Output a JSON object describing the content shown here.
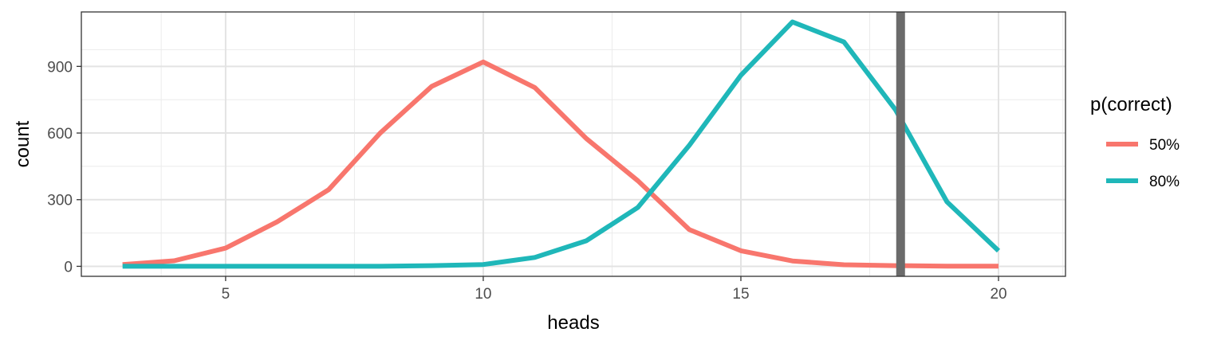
{
  "chart_data": {
    "type": "line",
    "xlabel": "heads",
    "ylabel": "count",
    "xlim": [
      2.2,
      21.3
    ],
    "ylim": [
      -45,
      1145
    ],
    "x_ticks": [
      5,
      10,
      15,
      20
    ],
    "y_ticks": [
      0,
      300,
      600,
      900
    ],
    "x_tick_labels": [
      "5",
      "10",
      "15",
      "20"
    ],
    "y_tick_labels": [
      "0",
      "300",
      "600",
      "900"
    ],
    "grid": true,
    "legend": {
      "title": "p(correct)",
      "placement": "right"
    },
    "vline": {
      "x": 18.1,
      "color": "#6b6b6b"
    },
    "series": [
      {
        "name": "50%",
        "color": "#F8766D",
        "x": [
          3,
          4,
          5,
          6,
          7,
          8,
          9,
          10,
          11,
          12,
          13,
          14,
          15,
          16,
          17,
          18,
          19,
          20
        ],
        "values": [
          8,
          25,
          82,
          200,
          345,
          600,
          810,
          920,
          805,
          575,
          385,
          165,
          70,
          24,
          7,
          3,
          1,
          1
        ]
      },
      {
        "name": "80%",
        "color": "#1FB7B9",
        "x": [
          3,
          4,
          5,
          6,
          7,
          8,
          9,
          10,
          11,
          12,
          13,
          14,
          15,
          16,
          17,
          18,
          19,
          20
        ],
        "values": [
          0,
          0,
          0,
          0,
          0,
          0,
          3,
          8,
          40,
          115,
          265,
          545,
          860,
          1100,
          1010,
          705,
          290,
          70
        ]
      }
    ]
  }
}
